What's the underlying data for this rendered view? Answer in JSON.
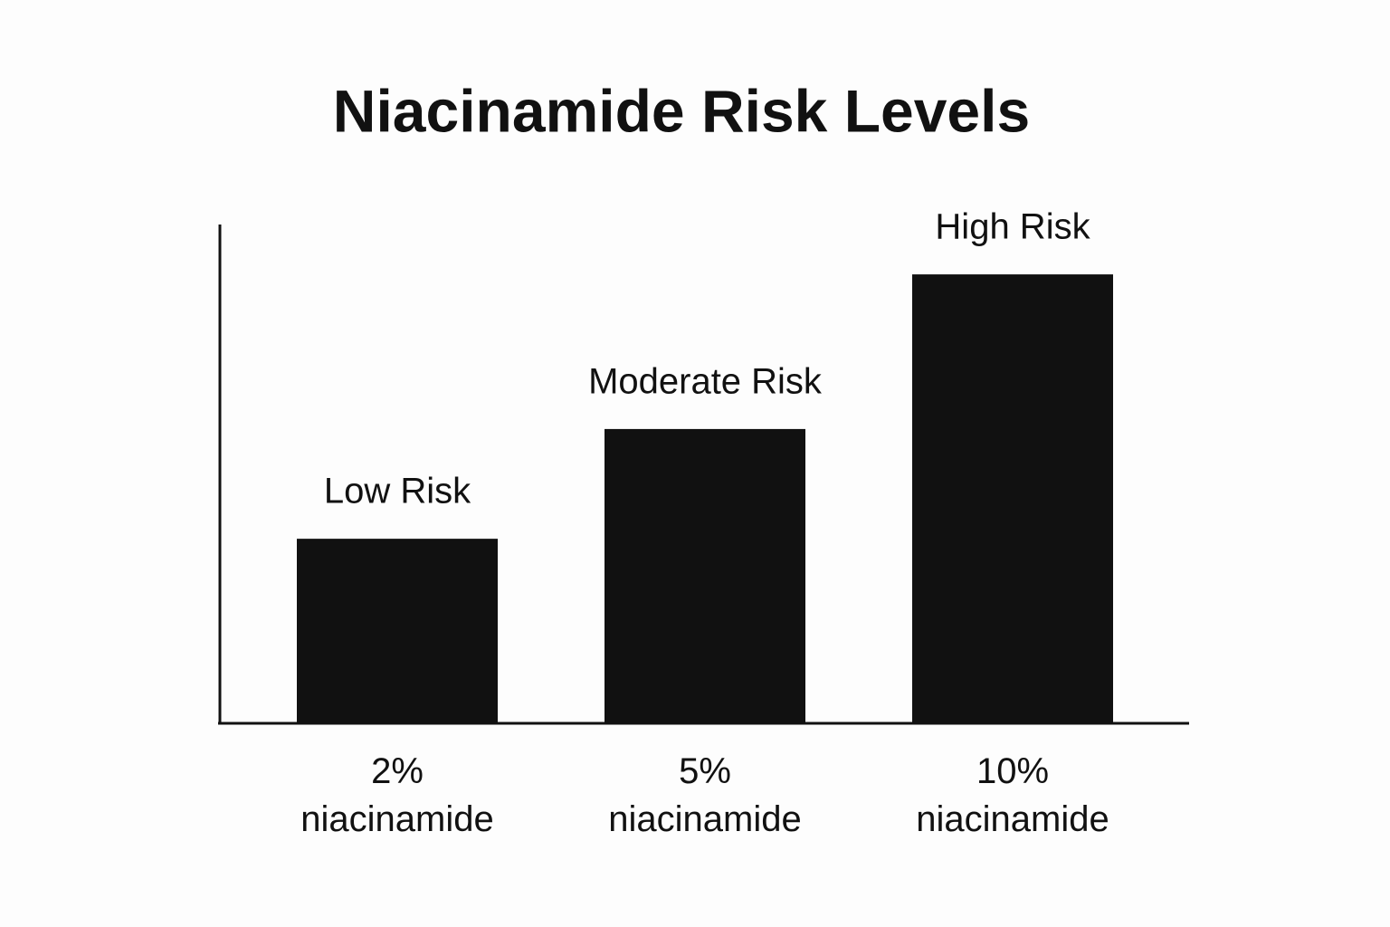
{
  "chart_data": {
    "type": "bar",
    "title": "Niacinamide Risk Levels",
    "categories": [
      "2%\nniacinamide",
      "5%\nniacinamide",
      "10%\nniacinamide"
    ],
    "values": [
      37,
      59,
      90
    ],
    "value_labels": [
      "Low Risk",
      "Moderate Risk",
      "High Risk"
    ],
    "color": "#111111",
    "ylim": [
      0,
      100
    ]
  }
}
